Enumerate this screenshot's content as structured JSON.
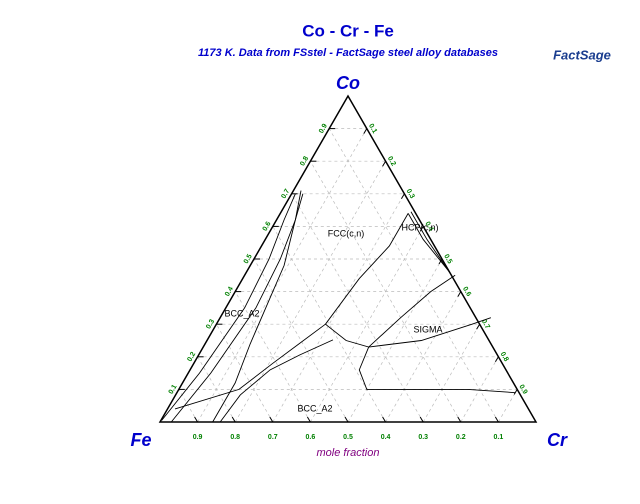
{
  "chart_data": {
    "type": "ternary",
    "title": "Co - Cr - Fe",
    "subtitle": "1173 K.  Data from FSstel - FactSage steel alloy databases",
    "logo": "FactSage",
    "corners": {
      "top": "Co",
      "left": "Fe",
      "right": "Cr"
    },
    "axis_label": "mole fraction",
    "fe_ticks": [
      0.1,
      0.2,
      0.3,
      0.4,
      0.5,
      0.6,
      0.7,
      0.8,
      0.9
    ],
    "co_ticks": [
      0.1,
      0.2,
      0.3,
      0.4,
      0.5,
      0.6,
      0.7,
      0.8,
      0.9
    ],
    "cr_ticks": [
      0.1,
      0.2,
      0.3,
      0.4,
      0.5,
      0.6,
      0.7,
      0.8,
      0.9
    ],
    "grid": true,
    "line_color": "#000000",
    "boundaries": [
      {
        "cr": [
          0.002,
          0.03,
          0.05,
          0.04,
          0.02,
          0.01
        ],
        "co": [
          0.005,
          0.15,
          0.35,
          0.5,
          0.62,
          0.7
        ]
      },
      {
        "cr": [
          0.03,
          0.06,
          0.08,
          0.07,
          0.05,
          0.03
        ],
        "co": [
          0,
          0.15,
          0.35,
          0.5,
          0.62,
          0.7
        ]
      },
      {
        "cr": [
          0.14,
          0.14,
          0.12,
          0.09,
          0.05,
          0.02
        ],
        "co": [
          0,
          0.12,
          0.24,
          0.48,
          0.62,
          0.71
        ]
      },
      {
        "cr": [
          0.02,
          0.16,
          0.21,
          0.25,
          0.29
        ],
        "co": [
          0.04,
          0.1,
          0.18,
          0.24,
          0.3
        ]
      },
      {
        "cr": [
          0.16,
          0.172,
          0.213,
          0.269,
          0.334
        ],
        "co": [
          0,
          0.083,
          0.16,
          0.206,
          0.252
        ]
      },
      {
        "cr": [
          0.29,
          0.31,
          0.34,
          0.34
        ],
        "co": [
          0.3,
          0.44,
          0.54,
          0.64
        ]
      },
      {
        "cr": [
          0.29,
          0.37,
          0.44,
          0.48,
          0.52,
          0.56
        ],
        "co": [
          0.3,
          0.25,
          0.23,
          0.32,
          0.4,
          0.45
        ]
      },
      {
        "cr": [
          0.34,
          0.42,
          0.54
        ],
        "co": [
          0.64,
          0.56,
          0.46
        ]
      },
      {
        "cr": [
          0.345,
          0.43,
          0.545
        ],
        "co": [
          0.645,
          0.56,
          0.455
        ]
      },
      {
        "cr": [
          0.44,
          0.45,
          0.5,
          0.59,
          0.77,
          0.9
        ],
        "co": [
          0.23,
          0.16,
          0.1,
          0.1,
          0.1,
          0.09
        ]
      },
      {
        "cr": [
          0.44,
          0.57,
          0.68,
          0.72
        ],
        "co": [
          0.23,
          0.25,
          0.3,
          0.32
        ]
      }
    ],
    "phase_labels": [
      "FCC(c,n)",
      "HCP(c,n)",
      "BCC_A2",
      "BCC_A2",
      "SIGMA"
    ]
  }
}
